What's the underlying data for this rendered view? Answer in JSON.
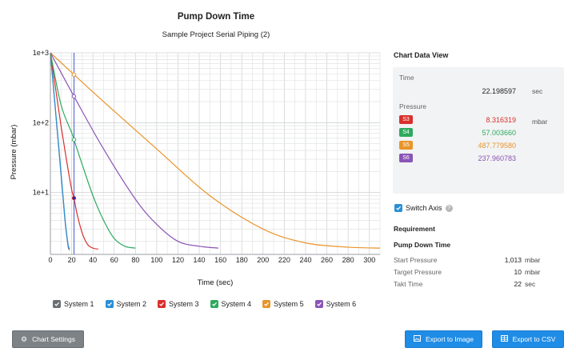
{
  "chart": {
    "title": "Pump Down Time",
    "subtitle": "Sample Project Serial Piping (2)",
    "xlabel": "Time (sec)",
    "ylabel": "Pressure (mbar)",
    "y_ticks": [
      "1e+3",
      "1e+2",
      "1e+1"
    ],
    "x_ticks": [
      "0",
      "20",
      "40",
      "60",
      "80",
      "100",
      "120",
      "140",
      "160",
      "180",
      "200",
      "220",
      "240",
      "260",
      "280",
      "300"
    ]
  },
  "chart_data": {
    "type": "line",
    "title": "Pump Down Time",
    "subtitle": "Sample Project Serial Piping (2)",
    "xlabel": "Time (sec)",
    "ylabel": "Pressure (mbar)",
    "xlim": [
      0,
      310
    ],
    "ylim": [
      1.3,
      1000
    ],
    "y_scale": "log",
    "grid": true,
    "cursor_x": 22.198597,
    "series": [
      {
        "name": "System 1",
        "color": "#6b6f73",
        "x": [
          0,
          3,
          6,
          9,
          12,
          14,
          16,
          17,
          18
        ],
        "y": [
          1000,
          300,
          90,
          27,
          8,
          3.6,
          2.0,
          1.6,
          1.5
        ]
      },
      {
        "name": "System 2",
        "color": "#2a8fd6",
        "x": [
          0,
          3,
          6,
          9,
          12,
          14,
          16,
          17,
          18
        ],
        "y": [
          1000,
          310,
          95,
          29,
          8.5,
          3.8,
          2.1,
          1.7,
          1.55
        ]
      },
      {
        "name": "System 3",
        "color": "#d9302c",
        "x": [
          0,
          5,
          10,
          15,
          20,
          22.2,
          25,
          30,
          35,
          40,
          45
        ],
        "y": [
          1000,
          300,
          90,
          30,
          11,
          8.3,
          5,
          2.6,
          1.8,
          1.6,
          1.55
        ]
      },
      {
        "name": "System 4",
        "color": "#2eaa5e",
        "x": [
          0,
          10,
          20,
          22.2,
          30,
          40,
          50,
          60,
          70,
          80
        ],
        "y": [
          1000,
          180,
          72,
          57,
          25,
          9,
          4,
          2.2,
          1.7,
          1.6
        ]
      },
      {
        "name": "System 5",
        "color": "#e8952a",
        "x": [
          0,
          22.2,
          50,
          100,
          150,
          200,
          240,
          280,
          310
        ],
        "y": [
          1000,
          488,
          200,
          42,
          9,
          3,
          1.9,
          1.65,
          1.6
        ]
      },
      {
        "name": "System 6",
        "color": "#8a55b5",
        "x": [
          0,
          22.2,
          50,
          80,
          100,
          120,
          140,
          158
        ],
        "y": [
          1000,
          238,
          42,
          8,
          3.5,
          2.0,
          1.7,
          1.6
        ]
      }
    ]
  },
  "legend": [
    {
      "label": "System 1",
      "color": "#6b6f73"
    },
    {
      "label": "System 2",
      "color": "#2a8fd6"
    },
    {
      "label": "System 3",
      "color": "#d9302c"
    },
    {
      "label": "System 4",
      "color": "#2eaa5e"
    },
    {
      "label": "System 5",
      "color": "#e8952a"
    },
    {
      "label": "System 6",
      "color": "#8a55b5"
    }
  ],
  "panel": {
    "title": "Chart Data View",
    "time_label": "Time",
    "time_value": "22.198597",
    "time_unit": "sec",
    "pressure_label": "Pressure",
    "pressure_unit": "mbar",
    "rows": [
      {
        "chip": "S3",
        "value": "8.316319",
        "color": "#d9302c"
      },
      {
        "chip": "S4",
        "value": "57.003660",
        "color": "#2eaa5e"
      },
      {
        "chip": "S5",
        "value": "487.779580",
        "color": "#e8952a"
      },
      {
        "chip": "S6",
        "value": "237.960783",
        "color": "#8a55b5"
      }
    ]
  },
  "switch_axis": {
    "label": "Switch Axis",
    "checked": true
  },
  "requirement": {
    "title": "Requirement",
    "subtitle": "Pump Down Time",
    "start_label": "Start Pressure",
    "start_value": "1,013",
    "start_unit": "mbar",
    "target_label": "Target Pressure",
    "target_value": "10",
    "target_unit": "mbar",
    "takt_label": "Takt Time",
    "takt_value": "22",
    "takt_unit": "sec"
  },
  "buttons": {
    "chart_settings": "Chart Settings",
    "export_image": "Export to Image",
    "export_csv": "Export to CSV"
  }
}
